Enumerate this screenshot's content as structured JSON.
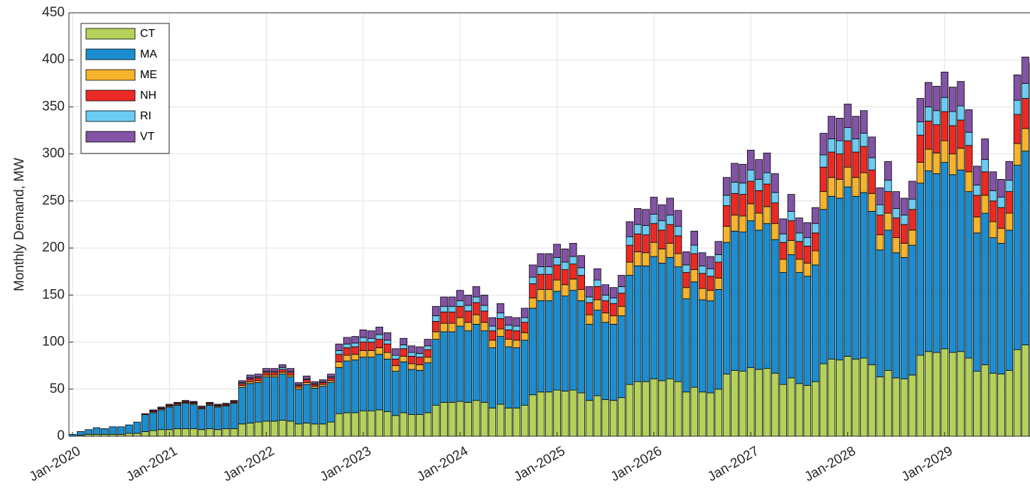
{
  "chart_data": {
    "type": "stacked_bar",
    "ylabel": "Monthly Demand, MW",
    "categories": [
      "Jan-2020",
      null,
      null,
      null,
      null,
      null,
      null,
      null,
      null,
      null,
      null,
      null,
      "Jan-2021",
      null,
      null,
      null,
      null,
      null,
      null,
      null,
      null,
      null,
      null,
      null,
      "Jan-2022",
      null,
      null,
      null,
      null,
      null,
      null,
      null,
      null,
      null,
      null,
      null,
      "Jan-2023",
      null,
      null,
      null,
      null,
      null,
      null,
      null,
      null,
      null,
      null,
      null,
      "Jan-2024",
      null,
      null,
      null,
      null,
      null,
      null,
      null,
      null,
      null,
      null,
      null,
      "Jan-2025",
      null,
      null,
      null,
      null,
      null,
      null,
      null,
      null,
      null,
      null,
      null,
      "Jan-2026",
      null,
      null,
      null,
      null,
      null,
      null,
      null,
      null,
      null,
      null,
      null,
      "Jan-2027",
      null,
      null,
      null,
      null,
      null,
      null,
      null,
      null,
      null,
      null,
      null,
      "Jan-2028",
      null,
      null,
      null,
      null,
      null,
      null,
      null,
      null,
      null,
      null,
      null,
      "Jan-2029",
      null,
      null,
      null,
      null,
      null,
      null,
      null,
      null,
      null,
      null,
      null
    ],
    "series": [
      {
        "name": "CT",
        "color": "#b4d25a",
        "values": [
          0,
          1,
          2,
          2,
          2,
          2,
          2,
          3,
          3,
          5,
          6,
          7,
          7,
          8,
          8,
          8,
          7,
          8,
          7,
          8,
          8,
          13,
          14,
          15,
          16,
          16,
          17,
          16,
          13,
          14,
          13,
          13,
          15,
          24,
          25,
          25,
          27,
          27,
          28,
          26,
          22,
          25,
          23,
          23,
          25,
          33,
          36,
          36,
          37,
          36,
          38,
          36,
          30,
          34,
          30,
          30,
          33,
          44,
          47,
          47,
          49,
          48,
          49,
          46,
          38,
          43,
          39,
          38,
          41,
          55,
          58,
          58,
          61,
          59,
          61,
          58,
          47,
          52,
          47,
          46,
          50,
          66,
          70,
          69,
          73,
          71,
          72,
          67,
          55,
          62,
          56,
          54,
          58,
          77,
          82,
          81,
          85,
          82,
          83,
          76,
          63,
          70,
          62,
          61,
          65,
          86,
          90,
          89,
          93,
          89,
          90,
          83,
          69,
          76,
          67,
          66,
          70,
          92,
          97,
          95
        ]
      },
      {
        "name": "MA",
        "color": "#1c8ecf",
        "values": [
          2,
          4,
          5,
          7,
          6,
          8,
          8,
          9,
          12,
          18,
          19,
          21,
          24,
          25,
          27,
          26,
          22,
          25,
          24,
          24,
          27,
          39,
          42,
          42,
          47,
          47,
          49,
          47,
          37,
          41,
          38,
          40,
          42,
          49,
          55,
          56,
          57,
          57,
          59,
          56,
          47,
          54,
          48,
          47,
          53,
          70,
          75,
          75,
          80,
          76,
          81,
          76,
          64,
          72,
          65,
          64,
          69,
          92,
          97,
          97,
          105,
          101,
          106,
          98,
          81,
          91,
          82,
          81,
          87,
          116,
          123,
          123,
          130,
          125,
          129,
          122,
          99,
          112,
          98,
          98,
          106,
          140,
          148,
          148,
          156,
          148,
          154,
          142,
          119,
          131,
          118,
          116,
          124,
          164,
          173,
          172,
          180,
          173,
          176,
          163,
          135,
          149,
          133,
          129,
          138,
          183,
          192,
          190,
          198,
          189,
          193,
          177,
          147,
          161,
          144,
          139,
          149,
          196,
          206,
          202
        ]
      },
      {
        "name": "ME",
        "color": "#f6b42d",
        "values": [
          0,
          0,
          0,
          0,
          0,
          0,
          0,
          0,
          0,
          0,
          1,
          1,
          1,
          1,
          1,
          1,
          1,
          1,
          1,
          1,
          1,
          2,
          2,
          2,
          2,
          2,
          2,
          2,
          2,
          2,
          2,
          2,
          2,
          6,
          6,
          6,
          7,
          7,
          7,
          7,
          6,
          6,
          6,
          6,
          6,
          8,
          9,
          9,
          9,
          9,
          10,
          9,
          8,
          8,
          8,
          8,
          8,
          11,
          12,
          12,
          12,
          12,
          12,
          12,
          10,
          11,
          10,
          9,
          10,
          14,
          15,
          14,
          15,
          15,
          15,
          14,
          12,
          13,
          12,
          11,
          12,
          17,
          17,
          17,
          18,
          18,
          18,
          17,
          14,
          15,
          14,
          14,
          15,
          19,
          20,
          20,
          21,
          20,
          21,
          19,
          16,
          18,
          16,
          15,
          16,
          22,
          23,
          22,
          23,
          22,
          23,
          21,
          17,
          19,
          17,
          16,
          18,
          23,
          24,
          24
        ]
      },
      {
        "name": "NH",
        "color": "#ec2a24",
        "values": [
          0,
          0,
          0,
          0,
          0,
          0,
          0,
          0,
          0,
          1,
          1,
          1,
          1,
          1,
          1,
          1,
          1,
          1,
          1,
          1,
          1,
          2,
          3,
          3,
          3,
          3,
          3,
          3,
          2,
          3,
          2,
          2,
          3,
          8,
          8,
          8,
          9,
          9,
          9,
          9,
          7,
          8,
          8,
          8,
          8,
          11,
          12,
          12,
          12,
          12,
          13,
          12,
          10,
          11,
          10,
          10,
          11,
          15,
          16,
          16,
          16,
          16,
          16,
          15,
          13,
          14,
          13,
          13,
          14,
          18,
          19,
          19,
          20,
          20,
          20,
          19,
          16,
          17,
          16,
          15,
          17,
          22,
          23,
          23,
          24,
          24,
          24,
          22,
          18,
          21,
          19,
          18,
          19,
          26,
          27,
          27,
          28,
          27,
          28,
          25,
          21,
          23,
          21,
          20,
          22,
          29,
          30,
          30,
          31,
          30,
          30,
          28,
          23,
          25,
          22,
          22,
          23,
          31,
          32,
          32
        ]
      },
      {
        "name": "RI",
        "color": "#6ccbf2",
        "values": [
          0,
          0,
          0,
          0,
          0,
          0,
          0,
          0,
          0,
          0,
          0,
          0,
          0,
          0,
          0,
          0,
          0,
          0,
          0,
          0,
          0,
          1,
          1,
          1,
          1,
          1,
          2,
          1,
          1,
          1,
          1,
          1,
          1,
          4,
          4,
          4,
          5,
          4,
          5,
          4,
          4,
          4,
          4,
          4,
          4,
          6,
          6,
          6,
          6,
          6,
          6,
          6,
          5,
          6,
          5,
          5,
          5,
          7,
          8,
          8,
          8,
          8,
          8,
          8,
          6,
          7,
          6,
          6,
          7,
          9,
          10,
          10,
          10,
          10,
          10,
          10,
          8,
          9,
          8,
          8,
          8,
          11,
          12,
          12,
          12,
          12,
          12,
          11,
          9,
          10,
          9,
          9,
          10,
          13,
          14,
          14,
          14,
          14,
          14,
          13,
          11,
          12,
          10,
          10,
          11,
          14,
          15,
          15,
          15,
          15,
          15,
          14,
          11,
          13,
          11,
          11,
          12,
          15,
          16,
          16
        ]
      },
      {
        "name": "VT",
        "color": "#8353a6",
        "values": [
          0,
          0,
          0,
          0,
          0,
          0,
          0,
          0,
          0,
          0,
          1,
          1,
          1,
          1,
          1,
          1,
          1,
          1,
          1,
          1,
          1,
          2,
          3,
          3,
          3,
          3,
          3,
          3,
          2,
          3,
          2,
          2,
          3,
          7,
          7,
          7,
          8,
          8,
          8,
          8,
          7,
          7,
          7,
          7,
          7,
          10,
          10,
          10,
          11,
          11,
          11,
          11,
          9,
          10,
          9,
          9,
          10,
          13,
          14,
          14,
          14,
          14,
          14,
          13,
          11,
          12,
          11,
          11,
          12,
          16,
          17,
          17,
          18,
          17,
          18,
          17,
          14,
          15,
          14,
          13,
          14,
          19,
          20,
          20,
          21,
          21,
          21,
          20,
          16,
          18,
          16,
          16,
          17,
          23,
          24,
          24,
          25,
          24,
          24,
          22,
          18,
          20,
          18,
          18,
          19,
          25,
          26,
          26,
          27,
          26,
          26,
          24,
          20,
          22,
          20,
          19,
          20,
          27,
          28,
          28
        ]
      }
    ],
    "ylim": [
      0,
      450
    ],
    "yticks": [
      0,
      50,
      100,
      150,
      200,
      250,
      300,
      350,
      400,
      450
    ],
    "grid": true,
    "legend": "upper-left"
  }
}
